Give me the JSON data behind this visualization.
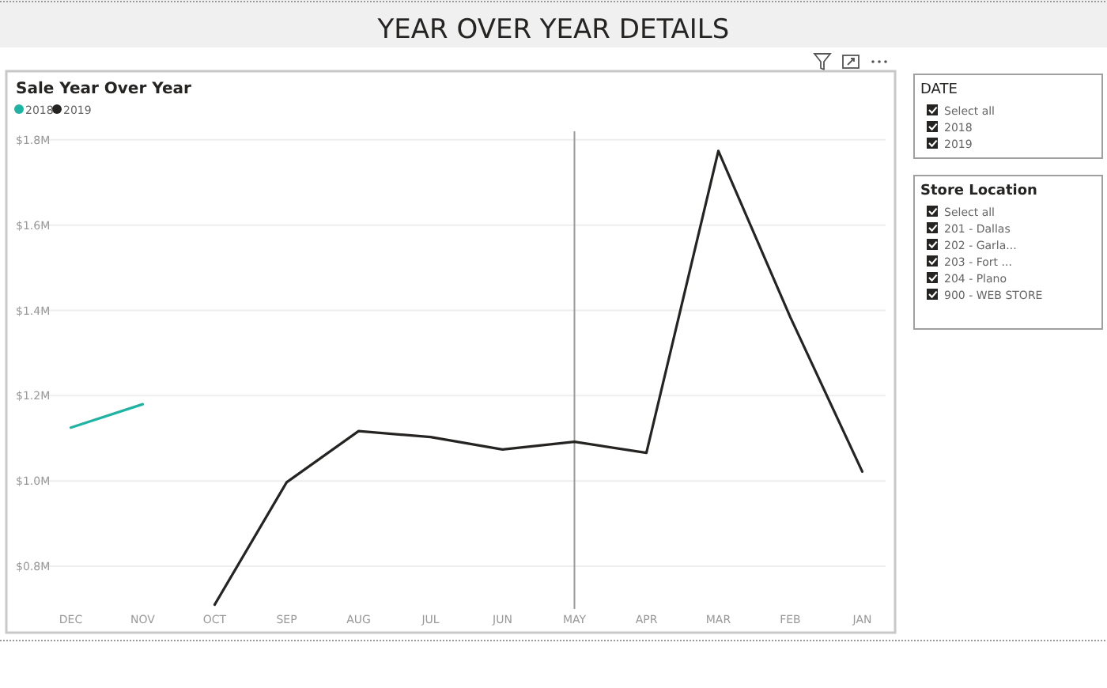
{
  "chart_data": [
    {
      "type": "line",
      "title": "Sale Year Over Year",
      "annotations": [
        "YEAR OVER YEAR DETAILS"
      ],
      "categories": [
        "DEC",
        "NOV",
        "OCT",
        "SEP",
        "AUG",
        "JUL",
        "JUN",
        "MAY",
        "APR",
        "MAR",
        "FEB",
        "JAN"
      ],
      "series": [
        {
          "name": "2018",
          "color": "#1fb3a3",
          "values": [
            1.125,
            1.18,
            null,
            null,
            null,
            null,
            null,
            null,
            null,
            null,
            null,
            null
          ]
        },
        {
          "name": "2019",
          "color": "#252423",
          "values": [
            null,
            null,
            0.71,
            0.997,
            1.117,
            1.103,
            1.074,
            1.092,
            1.066,
            1.774,
            1.384,
            1.022
          ]
        }
      ],
      "ylim": [
        0.7,
        1.82
      ],
      "yticks": [
        {
          "value": 0.8,
          "label": "$0.8M"
        },
        {
          "value": 1.0,
          "label": "$1.0M"
        },
        {
          "value": 1.2,
          "label": "$1.2M"
        },
        {
          "value": 1.4,
          "label": "$1.4M"
        },
        {
          "value": 1.6,
          "label": "$1.6M"
        },
        {
          "value": 1.8,
          "label": "$1.8M"
        }
      ],
      "ref_lines": [
        {
          "axis": "x",
          "value": "MAY",
          "color": "#999999"
        }
      ],
      "grid": "y",
      "legend": "top left",
      "marker": "none",
      "line_style": "solid"
    },
    {
      "type": "other",
      "title": "DATE",
      "annotations": [
        "Select all",
        "2018",
        "2019"
      ]
    },
    {
      "type": "other",
      "title": "Store Location",
      "annotations": [
        "Select all",
        "201 - Dallas",
        "202 - Garla...",
        "203 - Fort ...",
        "204 - Plano",
        "900 - WEB STORE"
      ]
    }
  ]
}
